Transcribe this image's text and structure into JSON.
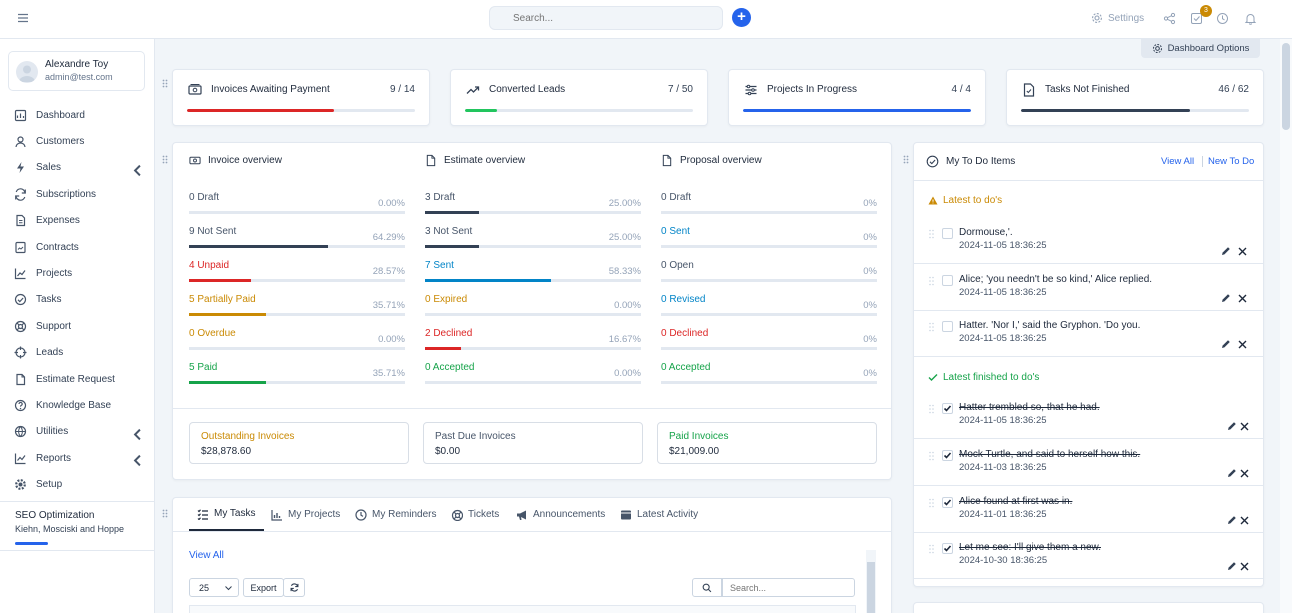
{
  "header": {
    "search_placeholder": "Search...",
    "settings_label": "Settings",
    "tasks_badge": "3",
    "dashboard_options_label": "Dashboard Options"
  },
  "user": {
    "name": "Alexandre Toy",
    "email": "admin@test.com"
  },
  "sidebar": {
    "items": [
      {
        "label": "Dashboard",
        "icon": "dashboard-icon"
      },
      {
        "label": "Customers",
        "icon": "user-icon"
      },
      {
        "label": "Sales",
        "icon": "bolt-icon",
        "expandable": true
      },
      {
        "label": "Subscriptions",
        "icon": "refresh-icon"
      },
      {
        "label": "Expenses",
        "icon": "file-icon"
      },
      {
        "label": "Contracts",
        "icon": "contract-icon"
      },
      {
        "label": "Projects",
        "icon": "chart-icon"
      },
      {
        "label": "Tasks",
        "icon": "check-circle-icon"
      },
      {
        "label": "Support",
        "icon": "lifebuoy-icon"
      },
      {
        "label": "Leads",
        "icon": "crosshair-icon"
      },
      {
        "label": "Estimate Request",
        "icon": "document-icon"
      },
      {
        "label": "Knowledge Base",
        "icon": "question-icon"
      },
      {
        "label": "Utilities",
        "icon": "globe-icon",
        "expandable": true
      },
      {
        "label": "Reports",
        "icon": "line-chart-icon",
        "expandable": true
      },
      {
        "label": "Setup",
        "icon": "gear-icon"
      }
    ],
    "project": {
      "title": "SEO Optimization",
      "client": "Kiehn, Mosciski and Hoppe",
      "progress": 0.22
    }
  },
  "stats": [
    {
      "title": "Invoices Awaiting Payment",
      "value": "9 / 14",
      "fraction": 0.6429,
      "color": "#dc2626",
      "icon": "money-icon"
    },
    {
      "title": "Converted Leads",
      "value": "7 / 50",
      "fraction": 0.14,
      "color": "#22c55e",
      "icon": "trend-icon"
    },
    {
      "title": "Projects In Progress",
      "value": "4 / 4",
      "fraction": 1.0,
      "color": "#2563eb",
      "icon": "sliders-icon"
    },
    {
      "title": "Tasks Not Finished",
      "value": "46 / 62",
      "fraction": 0.742,
      "color": "#334155",
      "icon": "task-file-icon"
    }
  ],
  "overview": [
    {
      "title": "Invoice overview",
      "rows": [
        {
          "label": "0 Draft",
          "pct": "0.00%",
          "fraction": 0,
          "color": "#475569"
        },
        {
          "label": "9 Not Sent",
          "pct": "64.29%",
          "fraction": 0.6429,
          "color": "#475569"
        },
        {
          "label": "4 Unpaid",
          "pct": "28.57%",
          "fraction": 0.2857,
          "color": "#dc2626"
        },
        {
          "label": "5 Partially Paid",
          "pct": "35.71%",
          "fraction": 0.3571,
          "color": "#ca8a04"
        },
        {
          "label": "0 Overdue",
          "pct": "0.00%",
          "fraction": 0,
          "color": "#ca8a04"
        },
        {
          "label": "5 Paid",
          "pct": "35.71%",
          "fraction": 0.3571,
          "color": "#16a34a"
        }
      ]
    },
    {
      "title": "Estimate overview",
      "rows": [
        {
          "label": "3 Draft",
          "pct": "25.00%",
          "fraction": 0.25,
          "color": "#475569"
        },
        {
          "label": "3 Not Sent",
          "pct": "25.00%",
          "fraction": 0.25,
          "color": "#475569"
        },
        {
          "label": "7 Sent",
          "pct": "58.33%",
          "fraction": 0.5833,
          "color": "#0284c7"
        },
        {
          "label": "0 Expired",
          "pct": "0.00%",
          "fraction": 0,
          "color": "#ca8a04"
        },
        {
          "label": "2 Declined",
          "pct": "16.67%",
          "fraction": 0.1667,
          "color": "#dc2626"
        },
        {
          "label": "0 Accepted",
          "pct": "0.00%",
          "fraction": 0,
          "color": "#16a34a"
        }
      ]
    },
    {
      "title": "Proposal overview",
      "rows": [
        {
          "label": "0 Draft",
          "pct": "0%",
          "fraction": 0,
          "color": "#475569"
        },
        {
          "label": "0 Sent",
          "pct": "0%",
          "fraction": 0,
          "color": "#0284c7"
        },
        {
          "label": "0 Open",
          "pct": "0%",
          "fraction": 0,
          "color": "#475569"
        },
        {
          "label": "0 Revised",
          "pct": "0%",
          "fraction": 0,
          "color": "#0284c7"
        },
        {
          "label": "0 Declined",
          "pct": "0%",
          "fraction": 0,
          "color": "#dc2626"
        },
        {
          "label": "0 Accepted",
          "pct": "0%",
          "fraction": 0,
          "color": "#16a34a"
        }
      ]
    }
  ],
  "invoice_boxes": [
    {
      "title": "Outstanding Invoices",
      "value": "$28,878.60",
      "color": "#ca8a04"
    },
    {
      "title": "Past Due Invoices",
      "value": "$0.00",
      "color": "#475569"
    },
    {
      "title": "Paid Invoices",
      "value": "$21,009.00",
      "color": "#16a34a"
    }
  ],
  "tabs": [
    {
      "label": "My Tasks",
      "icon": "task-list-icon",
      "active": true
    },
    {
      "label": "My Projects",
      "icon": "bar-chart-icon"
    },
    {
      "label": "My Reminders",
      "icon": "clock-icon"
    },
    {
      "label": "Tickets",
      "icon": "lifebuoy-icon"
    },
    {
      "label": "Announcements",
      "icon": "megaphone-icon"
    },
    {
      "label": "Latest Activity",
      "icon": "window-icon"
    }
  ],
  "tasks_table": {
    "view_all": "View All",
    "page_size": "25",
    "export": "Export",
    "search_placeholder": "Search..."
  },
  "todo": {
    "title": "My To Do Items",
    "view_all": "View All",
    "new": "New To Do",
    "latest_title": "Latest to do's",
    "finished_title": "Latest finished to do's",
    "latest": [
      {
        "text": "Dormouse,'.",
        "date": "2024-11-05 18:36:25"
      },
      {
        "text": "Alice; 'you needn't be so kind,' Alice replied.",
        "date": "2024-11-05 18:36:25"
      },
      {
        "text": "Hatter. 'Nor I,' said the Gryphon. 'Do you.",
        "date": "2024-11-05 18:36:25"
      }
    ],
    "finished": [
      {
        "text": "Hatter trembled so, that he had.",
        "date": "2024-11-05 18:36:25"
      },
      {
        "text": "Mock Turtle, and said to herself how this.",
        "date": "2024-11-03 18:36:25"
      },
      {
        "text": "Alice found at first was in.",
        "date": "2024-11-01 18:36:25"
      },
      {
        "text": "Let me see: I'll give them a new.",
        "date": "2024-10-30 18:36:25"
      }
    ]
  }
}
